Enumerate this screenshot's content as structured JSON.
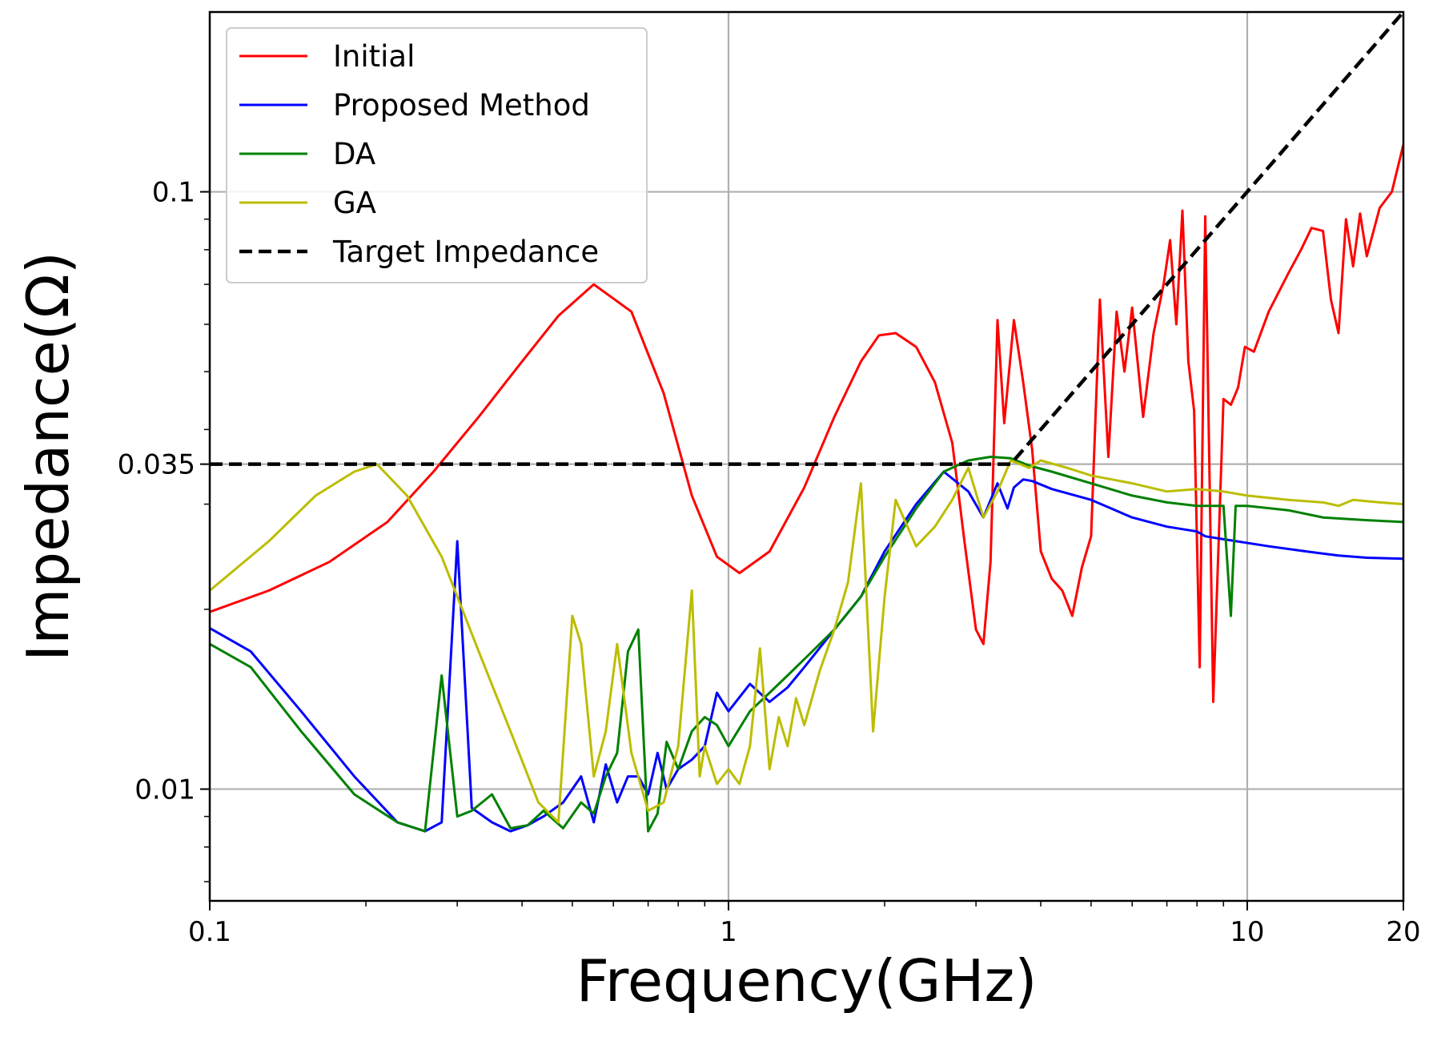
{
  "chart_data": {
    "type": "line",
    "title": "",
    "xlabel": "Frequency(GHz)",
    "ylabel": "Impedance(Ω)",
    "xscale": "log",
    "yscale": "log",
    "xlim": [
      0.1,
      20
    ],
    "ylim": [
      0.0065,
      0.2
    ],
    "grid": true,
    "legend_position": "top-left",
    "x_ticks": [
      {
        "value": 0.1,
        "label": "0.1"
      },
      {
        "value": 1,
        "label": "1"
      },
      {
        "value": 10,
        "label": "10"
      },
      {
        "value": 20,
        "label": "20"
      }
    ],
    "y_ticks": [
      {
        "value": 0.01,
        "label": "0.01"
      },
      {
        "value": 0.035,
        "label": "0.035"
      },
      {
        "value": 0.1,
        "label": "0.1"
      }
    ],
    "series": [
      {
        "name": "Initial",
        "color": "#ff0000",
        "style": "solid",
        "x": [
          0.1,
          0.13,
          0.17,
          0.22,
          0.27,
          0.33,
          0.4,
          0.47,
          0.55,
          0.65,
          0.75,
          0.85,
          0.95,
          1.05,
          1.2,
          1.4,
          1.6,
          1.8,
          1.95,
          2.1,
          2.3,
          2.5,
          2.7,
          2.85,
          3.0,
          3.1,
          3.2,
          3.3,
          3.4,
          3.55,
          3.7,
          3.85,
          4.0,
          4.2,
          4.4,
          4.6,
          4.8,
          5.0,
          5.2,
          5.4,
          5.6,
          5.8,
          6.0,
          6.3,
          6.6,
          6.9,
          7.1,
          7.3,
          7.5,
          7.7,
          7.9,
          8.1,
          8.3,
          8.6,
          9.0,
          9.3,
          9.6,
          9.9,
          10.3,
          11,
          12,
          12.7,
          13.3,
          14,
          14.5,
          15,
          15.5,
          16,
          16.5,
          17,
          18,
          19,
          20
        ],
        "values": [
          0.0198,
          0.0215,
          0.024,
          0.028,
          0.034,
          0.042,
          0.052,
          0.062,
          0.07,
          0.063,
          0.046,
          0.031,
          0.0245,
          0.023,
          0.025,
          0.032,
          0.042,
          0.052,
          0.0575,
          0.058,
          0.055,
          0.048,
          0.038,
          0.026,
          0.0185,
          0.0175,
          0.024,
          0.061,
          0.041,
          0.061,
          0.048,
          0.037,
          0.025,
          0.0225,
          0.0215,
          0.0195,
          0.0235,
          0.0265,
          0.066,
          0.036,
          0.063,
          0.05,
          0.064,
          0.042,
          0.058,
          0.07,
          0.083,
          0.06,
          0.093,
          0.052,
          0.043,
          0.016,
          0.091,
          0.014,
          0.045,
          0.044,
          0.047,
          0.055,
          0.054,
          0.063,
          0.073,
          0.08,
          0.087,
          0.086,
          0.066,
          0.058,
          0.09,
          0.075,
          0.092,
          0.078,
          0.094,
          0.1,
          0.12
        ]
      },
      {
        "name": "Proposed Method",
        "color": "#0000ff",
        "style": "solid",
        "x": [
          0.1,
          0.12,
          0.15,
          0.19,
          0.23,
          0.26,
          0.28,
          0.3,
          0.32,
          0.35,
          0.38,
          0.41,
          0.44,
          0.48,
          0.52,
          0.55,
          0.58,
          0.61,
          0.64,
          0.67,
          0.7,
          0.73,
          0.76,
          0.8,
          0.85,
          0.9,
          0.95,
          1.0,
          1.1,
          1.2,
          1.3,
          1.4,
          1.6,
          1.8,
          2.0,
          2.3,
          2.6,
          2.9,
          3.1,
          3.3,
          3.45,
          3.55,
          3.7,
          3.85,
          4.2,
          5,
          6,
          7,
          8,
          8.3,
          9,
          11,
          13,
          15,
          17,
          20
        ],
        "values": [
          0.0186,
          0.017,
          0.0135,
          0.0105,
          0.0088,
          0.0085,
          0.0088,
          0.026,
          0.0093,
          0.0088,
          0.0085,
          0.0087,
          0.009,
          0.0095,
          0.0105,
          0.0088,
          0.011,
          0.0095,
          0.0105,
          0.0105,
          0.0098,
          0.0115,
          0.01,
          0.0108,
          0.0112,
          0.0118,
          0.0145,
          0.0135,
          0.015,
          0.014,
          0.0148,
          0.016,
          0.0185,
          0.021,
          0.025,
          0.03,
          0.034,
          0.0315,
          0.0285,
          0.0325,
          0.0295,
          0.032,
          0.033,
          0.0328,
          0.0318,
          0.0305,
          0.0285,
          0.0275,
          0.027,
          0.0265,
          0.0262,
          0.0255,
          0.025,
          0.0246,
          0.0244,
          0.0243
        ]
      },
      {
        "name": "DA",
        "color": "#008000",
        "style": "solid",
        "x": [
          0.1,
          0.12,
          0.15,
          0.19,
          0.23,
          0.26,
          0.28,
          0.3,
          0.32,
          0.35,
          0.38,
          0.41,
          0.44,
          0.48,
          0.52,
          0.55,
          0.58,
          0.61,
          0.64,
          0.67,
          0.7,
          0.73,
          0.76,
          0.8,
          0.85,
          0.9,
          0.95,
          1.0,
          1.1,
          1.2,
          1.3,
          1.4,
          1.6,
          1.8,
          2.0,
          2.3,
          2.6,
          2.9,
          3.2,
          3.5,
          3.8,
          4.2,
          5,
          6,
          7,
          8,
          9,
          9.3,
          9.5,
          10,
          12,
          14,
          17,
          20
        ],
        "values": [
          0.0175,
          0.016,
          0.0125,
          0.0098,
          0.0088,
          0.0085,
          0.0155,
          0.009,
          0.0092,
          0.0098,
          0.0086,
          0.0087,
          0.0092,
          0.0086,
          0.0095,
          0.0091,
          0.0105,
          0.0115,
          0.017,
          0.0185,
          0.0085,
          0.0091,
          0.012,
          0.0108,
          0.0125,
          0.0132,
          0.0128,
          0.0118,
          0.0135,
          0.0145,
          0.0155,
          0.0165,
          0.0185,
          0.021,
          0.0245,
          0.0295,
          0.034,
          0.0355,
          0.036,
          0.0358,
          0.0348,
          0.034,
          0.0325,
          0.031,
          0.0302,
          0.0298,
          0.0298,
          0.0195,
          0.0298,
          0.0298,
          0.0293,
          0.0285,
          0.0282,
          0.028
        ]
      },
      {
        "name": "GA",
        "color": "#bcbd00",
        "style": "solid",
        "x": [
          0.1,
          0.13,
          0.16,
          0.19,
          0.21,
          0.24,
          0.28,
          0.33,
          0.38,
          0.43,
          0.47,
          0.5,
          0.52,
          0.55,
          0.58,
          0.61,
          0.65,
          0.7,
          0.75,
          0.8,
          0.85,
          0.88,
          0.9,
          0.95,
          1.0,
          1.05,
          1.1,
          1.15,
          1.2,
          1.25,
          1.3,
          1.35,
          1.4,
          1.5,
          1.6,
          1.7,
          1.8,
          1.9,
          2.0,
          2.1,
          2.3,
          2.5,
          2.7,
          2.9,
          3.1,
          3.3,
          3.5,
          3.8,
          4.0,
          4.5,
          5,
          6,
          7,
          8,
          9,
          10,
          12,
          14,
          15,
          16,
          18,
          20
        ],
        "values": [
          0.0215,
          0.026,
          0.031,
          0.034,
          0.035,
          0.031,
          0.0245,
          0.017,
          0.0125,
          0.0095,
          0.0088,
          0.0195,
          0.0175,
          0.0105,
          0.0125,
          0.0175,
          0.0115,
          0.0092,
          0.0095,
          0.0118,
          0.0215,
          0.0105,
          0.0118,
          0.0102,
          0.0108,
          0.0102,
          0.0118,
          0.0172,
          0.0108,
          0.0132,
          0.0118,
          0.0142,
          0.0128,
          0.0158,
          0.0185,
          0.0222,
          0.0325,
          0.0125,
          0.021,
          0.0305,
          0.0255,
          0.0275,
          0.0305,
          0.0345,
          0.0285,
          0.0315,
          0.0355,
          0.0345,
          0.0355,
          0.0345,
          0.0335,
          0.0325,
          0.0315,
          0.0318,
          0.0315,
          0.031,
          0.0305,
          0.0302,
          0.0298,
          0.0305,
          0.0302,
          0.03
        ]
      },
      {
        "name": "Target Impedance",
        "color": "#000000",
        "style": "dashed",
        "x": [
          0.1,
          3.5,
          20
        ],
        "values": [
          0.035,
          0.035,
          0.2
        ]
      }
    ]
  }
}
